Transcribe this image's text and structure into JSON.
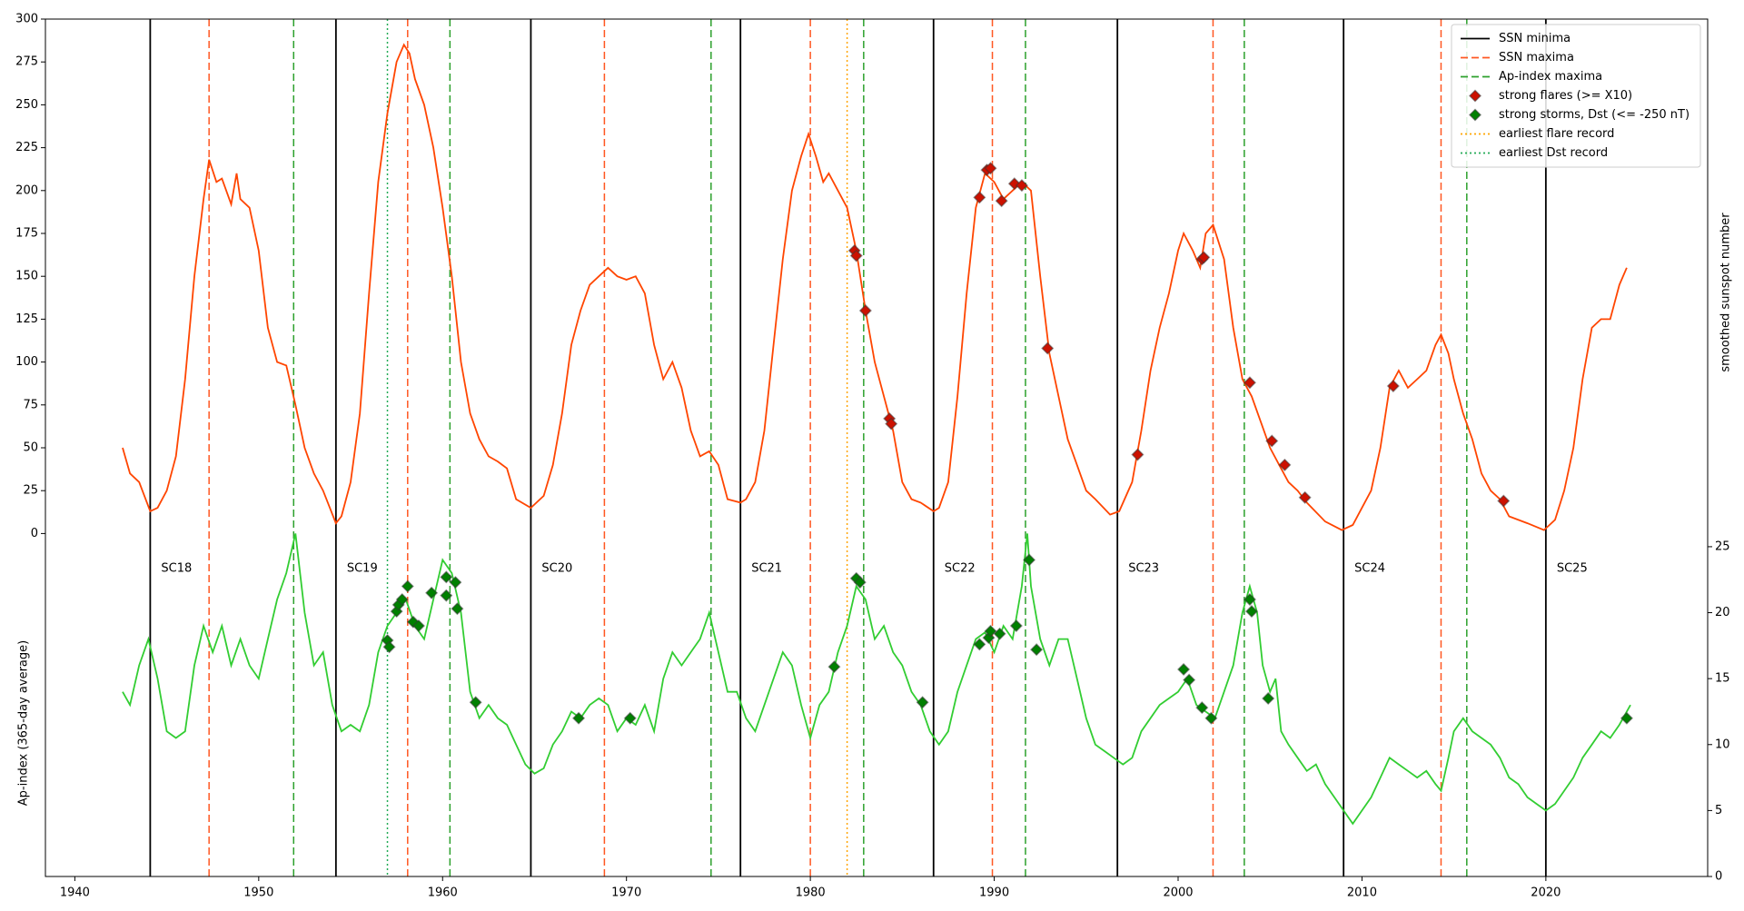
{
  "chart_data": {
    "type": "line",
    "ylabel": "Ap-index (365-day average)",
    "y2label": "smoothed sunspot number",
    "xlim": [
      1938.4,
      2028.8
    ],
    "xticks": [
      1940,
      1950,
      1960,
      1970,
      1980,
      1990,
      2000,
      2010,
      2020
    ],
    "ylim": [
      -200,
      300
    ],
    "yticks": [
      0,
      25,
      50,
      75,
      100,
      125,
      150,
      175,
      200,
      225,
      250,
      275,
      300
    ],
    "y2lim": [
      0,
      65
    ],
    "y2ticks": [
      0,
      5,
      10,
      15,
      20,
      25
    ],
    "legend": "upper right",
    "annotations": [
      "SC18",
      "SC19",
      "SC20",
      "SC21",
      "SC22",
      "SC23",
      "SC24",
      "SC25"
    ],
    "curves": [
      {
        "color": "#ff4500",
        "axis": "y",
        "x": [
          1942.6,
          1943,
          1943.5,
          1944.1,
          1944.5,
          1945,
          1945.5,
          1946,
          1946.5,
          1947,
          1947.3,
          1947.7,
          1948,
          1948.5,
          1948.8,
          1949,
          1949.5,
          1950,
          1950.5,
          1951,
          1951.5,
          1952,
          1952.5,
          1953,
          1953.5,
          1954.2,
          1954.5,
          1955,
          1955.5,
          1956,
          1956.5,
          1957,
          1957.5,
          1957.9,
          1958.2,
          1958.5,
          1959,
          1959.5,
          1960,
          1960.5,
          1961,
          1961.5,
          1962,
          1962.5,
          1963,
          1963.5,
          1964,
          1964.8,
          1965.5,
          1966,
          1966.5,
          1967,
          1967.5,
          1968,
          1968.5,
          1969,
          1969.5,
          1970,
          1970.5,
          1971,
          1971.5,
          1972,
          1972.5,
          1973,
          1973.5,
          1974,
          1974.5,
          1975,
          1975.5,
          1976.2,
          1976.5,
          1977,
          1977.5,
          1978,
          1978.5,
          1979,
          1979.5,
          1979.9,
          1980.3,
          1980.7,
          1981,
          1981.5,
          1982,
          1982.5,
          1983,
          1983.5,
          1984,
          1984.5,
          1985,
          1985.5,
          1986,
          1986.7,
          1987,
          1987.5,
          1988,
          1988.5,
          1989,
          1989.5,
          1990,
          1990.5,
          1991,
          1991.5,
          1992,
          1992.5,
          1993,
          1993.5,
          1994,
          1994.5,
          1995,
          1995.5,
          1996.3,
          1996.8,
          1997.5,
          1998,
          1998.5,
          1999,
          1999.5,
          2000,
          2000.3,
          2000.8,
          2001.2,
          2001.5,
          2001.9,
          2002.5,
          2003,
          2003.5,
          2004,
          2004.5,
          2005,
          2005.5,
          2006,
          2006.5,
          2007,
          2008,
          2008.9,
          2009.5,
          2010,
          2010.5,
          2011,
          2011.5,
          2012,
          2012.5,
          2013,
          2013.5,
          2014,
          2014.3,
          2014.7,
          2015,
          2015.5,
          2016,
          2016.5,
          2017,
          2017.5,
          2018,
          2019,
          2019.9,
          2020.5,
          2021,
          2021.5,
          2022,
          2022.5,
          2023,
          2023.5,
          2024,
          2024.4
        ],
        "values": [
          50,
          35,
          30,
          13,
          15,
          25,
          45,
          90,
          150,
          195,
          218,
          205,
          207,
          192,
          210,
          195,
          190,
          165,
          120,
          100,
          98,
          75,
          50,
          35,
          25,
          6,
          10,
          30,
          70,
          140,
          205,
          245,
          275,
          285,
          280,
          265,
          250,
          225,
          190,
          150,
          100,
          70,
          55,
          45,
          42,
          38,
          20,
          15,
          22,
          40,
          70,
          110,
          130,
          145,
          150,
          155,
          150,
          148,
          150,
          140,
          110,
          90,
          100,
          85,
          60,
          45,
          48,
          40,
          20,
          18,
          20,
          30,
          60,
          110,
          160,
          200,
          220,
          233,
          220,
          205,
          210,
          200,
          190,
          165,
          130,
          100,
          80,
          60,
          30,
          20,
          18,
          13,
          15,
          30,
          80,
          140,
          190,
          210,
          205,
          195,
          200,
          205,
          200,
          150,
          105,
          80,
          55,
          40,
          25,
          20,
          11,
          13,
          30,
          60,
          95,
          120,
          140,
          165,
          175,
          165,
          155,
          175,
          180,
          160,
          120,
          90,
          80,
          65,
          50,
          40,
          30,
          25,
          18,
          7,
          2,
          5,
          15,
          25,
          50,
          85,
          95,
          85,
          90,
          95,
          110,
          116,
          105,
          90,
          70,
          55,
          35,
          25,
          20,
          10,
          6,
          2,
          8,
          25,
          50,
          90,
          120,
          125,
          125,
          145,
          155
        ]
      },
      {
        "color": "#32cd32",
        "axis": "y2",
        "x": [
          1942.6,
          1943,
          1943.5,
          1944,
          1944.5,
          1945,
          1945.5,
          1946,
          1946.5,
          1947,
          1947.5,
          1948,
          1948.5,
          1949,
          1949.5,
          1950,
          1950.5,
          1951,
          1951.5,
          1952,
          1952.5,
          1953,
          1953.5,
          1954,
          1954.5,
          1955,
          1955.5,
          1956,
          1956.5,
          1957,
          1957.5,
          1958,
          1958.5,
          1959,
          1959.5,
          1960,
          1960.5,
          1961,
          1961.5,
          1962,
          1962.5,
          1963,
          1963.5,
          1964,
          1964.5,
          1965,
          1965.5,
          1966,
          1966.5,
          1967,
          1967.5,
          1968,
          1968.5,
          1969,
          1969.5,
          1970,
          1970.5,
          1971,
          1971.5,
          1972,
          1972.5,
          1973,
          1973.5,
          1974,
          1974.5,
          1975,
          1975.5,
          1976,
          1976.5,
          1977,
          1977.5,
          1978,
          1978.5,
          1979,
          1979.5,
          1980,
          1980.5,
          1981,
          1981.5,
          1982,
          1982.5,
          1983,
          1983.5,
          1984,
          1984.5,
          1985,
          1985.5,
          1986,
          1986.5,
          1987,
          1987.5,
          1988,
          1988.5,
          1989,
          1989.5,
          1990,
          1990.5,
          1991,
          1991.5,
          1991.8,
          1992,
          1992.5,
          1993,
          1993.5,
          1994,
          1994.5,
          1995,
          1995.5,
          1996,
          1996.5,
          1997,
          1997.5,
          1998,
          1998.5,
          1999,
          1999.5,
          2000,
          2000.5,
          2001,
          2001.5,
          2002,
          2002.5,
          2003,
          2003.5,
          2003.9,
          2004.3,
          2004.6,
          2005,
          2005.3,
          2005.6,
          2006,
          2006.5,
          2007,
          2007.5,
          2008,
          2008.5,
          2009,
          2009.5,
          2010,
          2010.5,
          2011,
          2011.5,
          2012,
          2012.5,
          2013,
          2013.5,
          2014,
          2014.3,
          2014.7,
          2015,
          2015.5,
          2016,
          2016.5,
          2017,
          2017.5,
          2018,
          2018.5,
          2019,
          2019.5,
          2020,
          2020.5,
          2021,
          2021.5,
          2022,
          2022.5,
          2023,
          2023.5,
          2024,
          2024.6
        ],
        "values": [
          14,
          13,
          16,
          18,
          15,
          11,
          10.5,
          11,
          16,
          19,
          17,
          19,
          16,
          18,
          16,
          15,
          18,
          21,
          23,
          26,
          20,
          16,
          17,
          13,
          11,
          11.5,
          11,
          13,
          17,
          19,
          20,
          21,
          19,
          18,
          21,
          24,
          23,
          20,
          14,
          12,
          13,
          12,
          11.5,
          10,
          8.5,
          7.8,
          8.2,
          10,
          11,
          12.5,
          12,
          13,
          13.5,
          13,
          11,
          12,
          11.5,
          13,
          11,
          15,
          17,
          16,
          17,
          18,
          20,
          17,
          14,
          14,
          12,
          11,
          13,
          15,
          17,
          16,
          13,
          10.5,
          13,
          14,
          17,
          19,
          22,
          21,
          18,
          19,
          17,
          16,
          14,
          13,
          11,
          10,
          11,
          14,
          16,
          18,
          18.5,
          17,
          19,
          18,
          22,
          26,
          22,
          18,
          16,
          18,
          18,
          15,
          12,
          10,
          9.5,
          9,
          8.5,
          9,
          11,
          12,
          13,
          13.5,
          14,
          15,
          13,
          12.5,
          12,
          14,
          16,
          20,
          22,
          20,
          16,
          14,
          15,
          11,
          10,
          9,
          8,
          8.5,
          7,
          6,
          5,
          4,
          5,
          6,
          7.5,
          9,
          8.5,
          8,
          7.5,
          8,
          7,
          6.5,
          9,
          11,
          12,
          11,
          10.5,
          10,
          9,
          7.5,
          7,
          6,
          5.5,
          5,
          5.5,
          6.5,
          7.5,
          9,
          10,
          11,
          10.5,
          11.5,
          13
        ]
      }
    ],
    "series": [
      {
        "name": "SSN minima",
        "kind": "vline",
        "color": "#000000",
        "style": "solid",
        "x": [
          1944.1,
          1954.2,
          1964.8,
          1976.2,
          1986.7,
          1996.7,
          2009.0,
          2020.0
        ]
      },
      {
        "name": "SSN maxima",
        "kind": "vline",
        "color": "#ff5722",
        "style": "dashed",
        "x": [
          1947.3,
          1958.1,
          1968.8,
          1980.0,
          1989.9,
          2001.9,
          2014.3
        ]
      },
      {
        "name": "Ap-index maxima",
        "kind": "vline",
        "color": "#2ca02c",
        "style": "dashed",
        "x": [
          1951.9,
          1960.4,
          1974.6,
          1982.9,
          1991.7,
          2003.6,
          2015.7
        ]
      },
      {
        "name": "strong flares (>= X10)",
        "kind": "marker",
        "axis": "y",
        "color": "#cc1100",
        "x": [
          1982.4,
          1982.5,
          1983.0,
          1984.3,
          1984.4,
          1989.2,
          1989.6,
          1989.8,
          1990.4,
          1991.1,
          1991.5,
          1992.9,
          1997.8,
          2001.3,
          2001.4,
          2003.9,
          2005.1,
          2005.8,
          2006.9,
          2011.7,
          2017.7
        ],
        "values": [
          165,
          162,
          130,
          67,
          64,
          196,
          212,
          213,
          194,
          204,
          203,
          108,
          46,
          160,
          161,
          88,
          54,
          40,
          21,
          86,
          19
        ]
      },
      {
        "name": "strong storms, Dst (<= -250 nT)",
        "kind": "marker",
        "axis": "y2",
        "color": "#008000",
        "x": [
          1957.0,
          1957.1,
          1957.5,
          1957.6,
          1957.8,
          1958.1,
          1958.4,
          1958.7,
          1959.4,
          1960.2,
          1960.2,
          1960.7,
          1960.8,
          1961.8,
          1967.4,
          1970.2,
          1981.3,
          1982.5,
          1982.7,
          1986.1,
          1989.2,
          1989.7,
          1989.8,
          1990.3,
          1991.2,
          1991.9,
          1992.3,
          2000.3,
          2000.6,
          2001.3,
          2001.8,
          2003.9,
          2004.0,
          2004.9,
          2024.4
        ],
        "values": [
          17.9,
          17.4,
          20.1,
          20.6,
          21.0,
          22.0,
          19.3,
          19.0,
          21.5,
          21.3,
          22.7,
          22.3,
          20.3,
          13.2,
          12.0,
          12.0,
          15.9,
          22.6,
          22.3,
          13.2,
          17.6,
          18.1,
          18.6,
          18.4,
          19.0,
          24.0,
          17.2,
          15.7,
          14.9,
          12.8,
          12.0,
          21.0,
          20.1,
          13.5,
          12.0
        ]
      },
      {
        "name": "earliest flare record",
        "kind": "vline",
        "color": "#ffa500",
        "style": "dotted",
        "x": [
          1982.0
        ]
      },
      {
        "name": "earliest Dst record",
        "kind": "vline",
        "color": "#22aa55",
        "style": "dotted",
        "x": [
          1957.0
        ]
      }
    ]
  }
}
